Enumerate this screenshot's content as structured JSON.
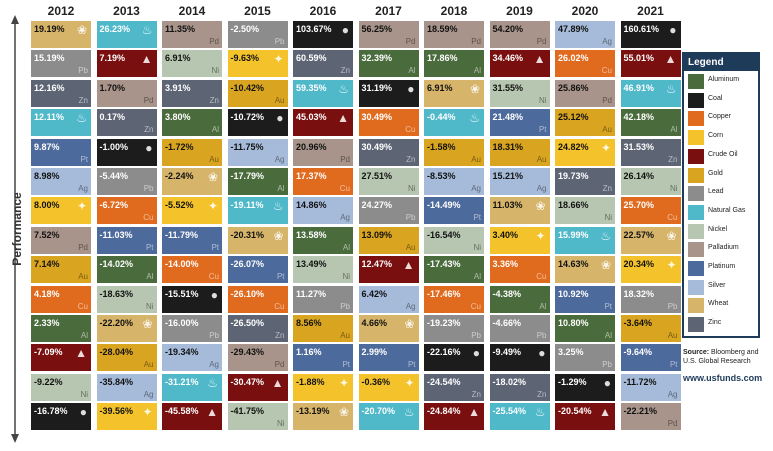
{
  "chart_data": {
    "type": "table",
    "ylabel": "Performance",
    "years": [
      "2012",
      "2013",
      "2014",
      "2015",
      "2016",
      "2017",
      "2018",
      "2019",
      "2020",
      "2021"
    ],
    "columns": [
      [
        [
          "19.19%",
          "Wheat"
        ],
        [
          "15.19%",
          "Lead"
        ],
        [
          "12.16%",
          "Zinc"
        ],
        [
          "12.11%",
          "Natural Gas"
        ],
        [
          "9.87%",
          "Platinum"
        ],
        [
          "8.98%",
          "Silver"
        ],
        [
          "8.00%",
          "Corn"
        ],
        [
          "7.52%",
          "Palladium"
        ],
        [
          "7.14%",
          "Gold"
        ],
        [
          "4.18%",
          "Copper"
        ],
        [
          "2.33%",
          "Aluminum"
        ],
        [
          "-7.09%",
          "Crude Oil"
        ],
        [
          "-9.22%",
          "Nickel"
        ],
        [
          "-16.78%",
          "Coal"
        ]
      ],
      [
        [
          "26.23%",
          "Natural Gas"
        ],
        [
          "7.19%",
          "Crude Oil"
        ],
        [
          "1.70%",
          "Palladium"
        ],
        [
          "0.17%",
          "Zinc"
        ],
        [
          "-1.00%",
          "Coal"
        ],
        [
          "-5.44%",
          "Lead"
        ],
        [
          "-6.72%",
          "Copper"
        ],
        [
          "-11.03%",
          "Platinum"
        ],
        [
          "-14.02%",
          "Aluminum"
        ],
        [
          "-18.63%",
          "Nickel"
        ],
        [
          "-22.20%",
          "Wheat"
        ],
        [
          "-28.04%",
          "Gold"
        ],
        [
          "-35.84%",
          "Silver"
        ],
        [
          "-39.56%",
          "Corn"
        ]
      ],
      [
        [
          "11.35%",
          "Palladium"
        ],
        [
          "6.91%",
          "Nickel"
        ],
        [
          "3.91%",
          "Zinc"
        ],
        [
          "3.80%",
          "Aluminum"
        ],
        [
          "-1.72%",
          "Gold"
        ],
        [
          "-2.24%",
          "Wheat"
        ],
        [
          "-5.52%",
          "Corn"
        ],
        [
          "-11.79%",
          "Platinum"
        ],
        [
          "-14.00%",
          "Copper"
        ],
        [
          "-15.51%",
          "Coal"
        ],
        [
          "-16.00%",
          "Lead"
        ],
        [
          "-19.34%",
          "Silver"
        ],
        [
          "-31.21%",
          "Natural Gas"
        ],
        [
          "-45.58%",
          "Crude Oil"
        ]
      ],
      [
        [
          "-2.50%",
          "Lead"
        ],
        [
          "-9.63%",
          "Corn"
        ],
        [
          "-10.42%",
          "Gold"
        ],
        [
          "-10.72%",
          "Coal"
        ],
        [
          "-11.75%",
          "Silver"
        ],
        [
          "-17.79%",
          "Aluminum"
        ],
        [
          "-19.11%",
          "Natural Gas"
        ],
        [
          "-20.31%",
          "Wheat"
        ],
        [
          "-26.07%",
          "Platinum"
        ],
        [
          "-26.10%",
          "Copper"
        ],
        [
          "-26.50%",
          "Zinc"
        ],
        [
          "-29.43%",
          "Palladium"
        ],
        [
          "-30.47%",
          "Crude Oil"
        ],
        [
          "-41.75%",
          "Nickel"
        ]
      ],
      [
        [
          "103.67%",
          "Coal"
        ],
        [
          "60.59%",
          "Zinc"
        ],
        [
          "59.35%",
          "Natural Gas"
        ],
        [
          "45.03%",
          "Crude Oil"
        ],
        [
          "20.96%",
          "Palladium"
        ],
        [
          "17.37%",
          "Copper"
        ],
        [
          "14.86%",
          "Silver"
        ],
        [
          "13.58%",
          "Aluminum"
        ],
        [
          "13.49%",
          "Nickel"
        ],
        [
          "11.27%",
          "Lead"
        ],
        [
          "8.56%",
          "Gold"
        ],
        [
          "1.16%",
          "Platinum"
        ],
        [
          "-1.88%",
          "Corn"
        ],
        [
          "-13.19%",
          "Wheat"
        ]
      ],
      [
        [
          "56.25%",
          "Palladium"
        ],
        [
          "32.39%",
          "Aluminum"
        ],
        [
          "31.19%",
          "Coal"
        ],
        [
          "30.49%",
          "Copper"
        ],
        [
          "30.49%",
          "Zinc"
        ],
        [
          "27.51%",
          "Nickel"
        ],
        [
          "24.27%",
          "Lead"
        ],
        [
          "13.09%",
          "Gold"
        ],
        [
          "12.47%",
          "Crude Oil"
        ],
        [
          "6.42%",
          "Silver"
        ],
        [
          "4.66%",
          "Wheat"
        ],
        [
          "2.99%",
          "Platinum"
        ],
        [
          "-0.36%",
          "Corn"
        ],
        [
          "-20.70%",
          "Natural Gas"
        ]
      ],
      [
        [
          "18.59%",
          "Palladium"
        ],
        [
          "17.86%",
          "Aluminum"
        ],
        [
          "6.91%",
          "Wheat"
        ],
        [
          "-0.44%",
          "Natural Gas"
        ],
        [
          "-1.58%",
          "Gold"
        ],
        [
          "-8.53%",
          "Silver"
        ],
        [
          "-14.49%",
          "Platinum"
        ],
        [
          "-16.54%",
          "Nickel"
        ],
        [
          "-17.43%",
          "Aluminum"
        ],
        [
          "-17.46%",
          "Copper"
        ],
        [
          "-19.23%",
          "Lead"
        ],
        [
          "-22.16%",
          "Coal"
        ],
        [
          "-24.54%",
          "Zinc"
        ],
        [
          "-24.84%",
          "Crude Oil"
        ]
      ],
      [
        [
          "54.20%",
          "Palladium"
        ],
        [
          "34.46%",
          "Crude Oil"
        ],
        [
          "31.55%",
          "Nickel"
        ],
        [
          "21.48%",
          "Platinum"
        ],
        [
          "18.31%",
          "Gold"
        ],
        [
          "15.21%",
          "Silver"
        ],
        [
          "11.03%",
          "Wheat"
        ],
        [
          "3.40%",
          "Corn"
        ],
        [
          "3.36%",
          "Copper"
        ],
        [
          "-4.38%",
          "Aluminum"
        ],
        [
          "-4.66%",
          "Lead"
        ],
        [
          "-9.49%",
          "Coal"
        ],
        [
          "-18.02%",
          "Zinc"
        ],
        [
          "-25.54%",
          "Natural Gas"
        ]
      ],
      [
        [
          "47.89%",
          "Silver"
        ],
        [
          "26.02%",
          "Copper"
        ],
        [
          "25.86%",
          "Palladium"
        ],
        [
          "25.12%",
          "Gold"
        ],
        [
          "24.82%",
          "Corn"
        ],
        [
          "19.73%",
          "Zinc"
        ],
        [
          "18.66%",
          "Nickel"
        ],
        [
          "15.99%",
          "Natural Gas"
        ],
        [
          "14.63%",
          "Wheat"
        ],
        [
          "10.92%",
          "Platinum"
        ],
        [
          "10.80%",
          "Aluminum"
        ],
        [
          "3.25%",
          "Lead"
        ],
        [
          "-1.29%",
          "Coal"
        ],
        [
          "-20.54%",
          "Crude Oil"
        ]
      ],
      [
        [
          "160.61%",
          "Coal"
        ],
        [
          "55.01%",
          "Crude Oil"
        ],
        [
          "46.91%",
          "Natural Gas"
        ],
        [
          "42.18%",
          "Aluminum"
        ],
        [
          "31.53%",
          "Zinc"
        ],
        [
          "26.14%",
          "Nickel"
        ],
        [
          "25.70%",
          "Copper"
        ],
        [
          "22.57%",
          "Wheat"
        ],
        [
          "20.34%",
          "Corn"
        ],
        [
          "18.32%",
          "Lead"
        ],
        [
          "-3.64%",
          "Gold"
        ],
        [
          "-9.64%",
          "Platinum"
        ],
        [
          "-11.72%",
          "Silver"
        ],
        [
          "-22.21%",
          "Palladium"
        ]
      ]
    ]
  },
  "legend": {
    "title": "Legend",
    "items": [
      {
        "name": "Aluminum",
        "color": "#4a6b3c",
        "sym": "Al"
      },
      {
        "name": "Coal",
        "color": "#1c1c1c",
        "sym": ""
      },
      {
        "name": "Copper",
        "color": "#e06b1f",
        "sym": "Cu"
      },
      {
        "name": "Corn",
        "color": "#f4c32c",
        "sym": ""
      },
      {
        "name": "Crude Oil",
        "color": "#7a0f0f",
        "sym": ""
      },
      {
        "name": "Gold",
        "color": "#d9a520",
        "sym": "Au"
      },
      {
        "name": "Lead",
        "color": "#8c8c8c",
        "sym": "Pb"
      },
      {
        "name": "Natural Gas",
        "color": "#4fb8c9",
        "sym": ""
      },
      {
        "name": "Nickel",
        "color": "#b7c6b0",
        "sym": "Ni"
      },
      {
        "name": "Palladium",
        "color": "#a8948a",
        "sym": "Pd"
      },
      {
        "name": "Platinum",
        "color": "#4d6a9c",
        "sym": "Pt"
      },
      {
        "name": "Silver",
        "color": "#a6bbd9",
        "sym": "Ag"
      },
      {
        "name": "Wheat",
        "color": "#d6b46a",
        "sym": ""
      },
      {
        "name": "Zinc",
        "color": "#5d6575",
        "sym": "Zn"
      }
    ]
  },
  "source": {
    "label": "Source:",
    "text": "Bloomberg and U.S. Global Research"
  },
  "website": "www.usfunds.com"
}
